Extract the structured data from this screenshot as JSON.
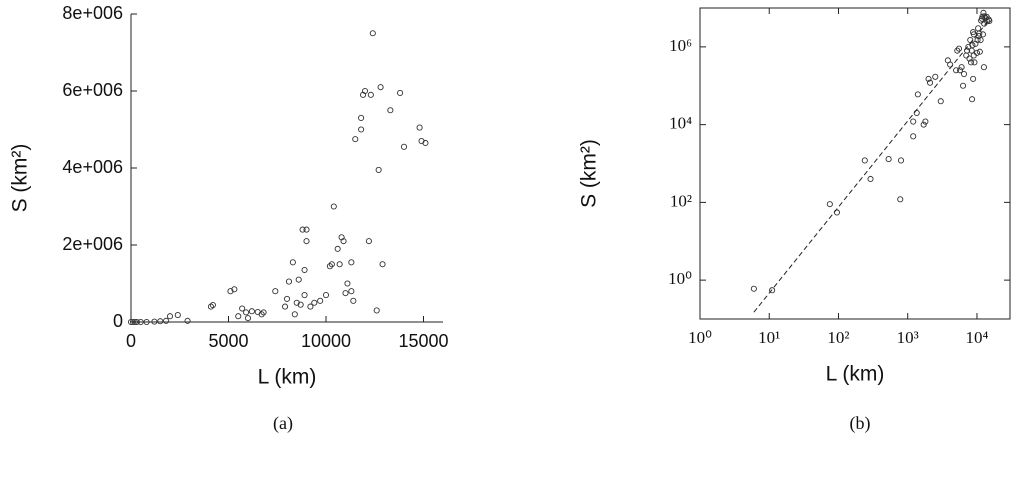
{
  "chart_data": [
    {
      "type": "scatter",
      "caption": "(a)",
      "xlabel": "L (km)",
      "ylabel": "S (km²)",
      "xlim": [
        0,
        16000
      ],
      "xticks": [
        0,
        5000,
        10000,
        15000
      ],
      "ylim": [
        0,
        8000000
      ],
      "yticks": [
        0,
        {
          "value": 2000000,
          "label": "2e+006"
        },
        {
          "value": 4000000,
          "label": "4e+006"
        },
        {
          "value": 6000000,
          "label": "6e+006"
        },
        {
          "value": 8000000,
          "label": "8e+006"
        }
      ],
      "log": false,
      "box": false,
      "color": "#333333",
      "x": [
        0,
        100,
        200,
        300,
        500,
        800,
        1200,
        1500,
        1800,
        2000,
        2400,
        2900,
        4100,
        4200,
        5100,
        5300,
        5500,
        5700,
        5900,
        6000,
        6200,
        6500,
        6700,
        6800,
        7400,
        7900,
        8000,
        8100,
        8300,
        8400,
        8500,
        8600,
        8700,
        8800,
        8900,
        8900,
        9000,
        9000,
        9200,
        9400,
        9700,
        10000,
        10200,
        10300,
        10400,
        10600,
        10700,
        10800,
        10900,
        11000,
        11100,
        11300,
        11300,
        11400,
        11500,
        11800,
        11800,
        11900,
        12000,
        12200,
        12300,
        12400,
        12600,
        12700,
        12800,
        12900,
        13300,
        13800,
        14000,
        14800,
        14900,
        15100
      ],
      "values": [
        0,
        0,
        0,
        0,
        0,
        0,
        10000,
        20000,
        30000,
        150000,
        180000,
        30000,
        400000,
        440000,
        800000,
        850000,
        150000,
        350000,
        250000,
        100000,
        280000,
        260000,
        200000,
        250000,
        800000,
        400000,
        600000,
        1050000,
        1550000,
        200000,
        500000,
        1100000,
        450000,
        2400000,
        1350000,
        700000,
        2100000,
        2400000,
        400000,
        500000,
        550000,
        700000,
        1450000,
        1500000,
        3000000,
        1900000,
        1500000,
        2200000,
        2100000,
        750000,
        1000000,
        800000,
        1550000,
        550000,
        4750000,
        5300000,
        5000000,
        5900000,
        6000000,
        2100000,
        5900000,
        7500000,
        300000,
        3950000,
        6100000,
        1500000,
        5500000,
        5950000,
        4550000,
        5050000,
        4700000,
        4650000
      ]
    },
    {
      "type": "scatter",
      "caption": "(b)",
      "xlabel": "L (km)",
      "ylabel": "S (km²)",
      "xlim": [
        1,
        30000
      ],
      "xticks": [
        {
          "value": 1,
          "label": "10⁰"
        },
        {
          "value": 10,
          "label": "10¹"
        },
        {
          "value": 100,
          "label": "10²"
        },
        {
          "value": 1000,
          "label": "10³"
        },
        {
          "value": 10000,
          "label": "10⁴"
        }
      ],
      "ylim": [
        0.1,
        10000000
      ],
      "yticks": [
        {
          "value": 1,
          "label": "10⁰"
        },
        {
          "value": 100,
          "label": "10²"
        },
        {
          "value": 10000,
          "label": "10⁴"
        },
        {
          "value": 1000000,
          "label": "10⁶"
        }
      ],
      "log": true,
      "box": true,
      "color": "#333333",
      "x": [
        6,
        11,
        75,
        95,
        240,
        290,
        530,
        800,
        780,
        1200,
        1200,
        1350,
        1400,
        1700,
        1800,
        2000,
        2100,
        2500,
        3000,
        3800,
        4100,
        5000,
        5200,
        5500,
        5700,
        6000,
        6300,
        6500,
        7000,
        7200,
        7500,
        7800,
        8000,
        8200,
        8400,
        8500,
        8600,
        8800,
        8800,
        9000,
        9000,
        9200,
        9500,
        10000,
        10200,
        10400,
        10600,
        10800,
        11000,
        11300,
        11500,
        11800,
        12000,
        12200,
        12400,
        12600,
        12700,
        12800,
        13300,
        13800,
        14000,
        14800,
        15100
      ],
      "values": [
        0.6,
        0.55,
        90,
        55,
        1200,
        400,
        1300,
        1200,
        120,
        12000,
        5000,
        20000,
        60000,
        10000,
        12000,
        150000,
        120000,
        170000,
        40000,
        450000,
        350000,
        250000,
        800000,
        900000,
        250000,
        300000,
        100000,
        200000,
        600000,
        800000,
        1000000,
        500000,
        1500000,
        400000,
        800000,
        45000,
        1100000,
        150000,
        2400000,
        600000,
        2100000,
        400000,
        1200000,
        700000,
        1500000,
        3000000,
        1900000,
        2200000,
        750000,
        1500000,
        4750000,
        5300000,
        6000000,
        2100000,
        7500000,
        300000,
        3950000,
        6100000,
        5500000,
        5950000,
        4550000,
        5050000,
        4650000
      ],
      "fit": {
        "x": [
          6,
          15000
        ],
        "values": [
          0.15,
          5000000
        ],
        "style": "dashed"
      }
    }
  ]
}
